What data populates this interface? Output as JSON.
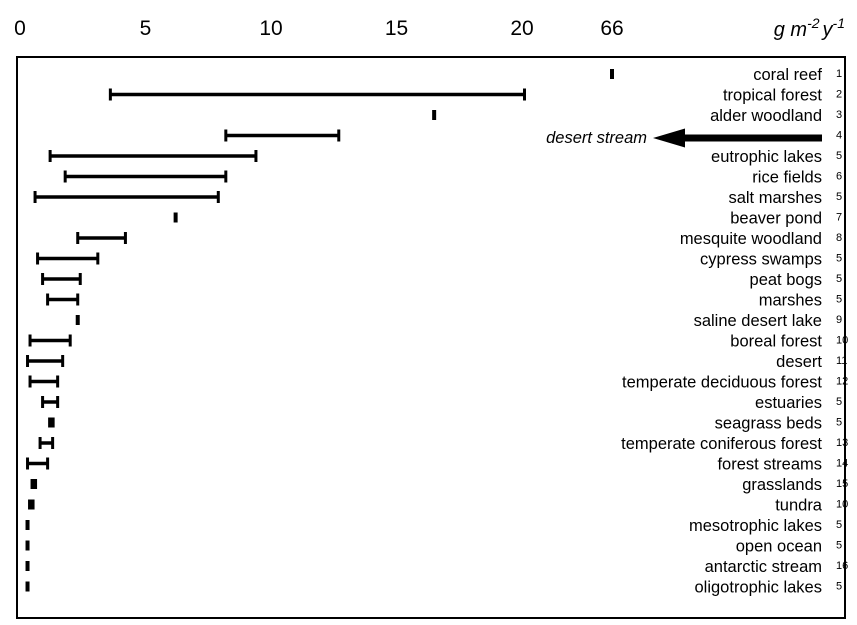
{
  "chart_data": {
    "type": "range-bar",
    "orientation": "horizontal",
    "unit_label": {
      "base": "g m",
      "exp1": "-2",
      "mid": "y",
      "exp2": "-1"
    },
    "x_ticks": [
      "0",
      "5",
      "10",
      "15",
      "20",
      "66"
    ],
    "x_scale": "linear 0-20, axis break to 66",
    "grid": false,
    "rows": [
      {
        "label": "coral reef",
        "ref": "1",
        "min": 66,
        "max": 66
      },
      {
        "label": "tropical forest",
        "ref": "2",
        "min": 3.6,
        "max": 20.1
      },
      {
        "label": "alder woodland",
        "ref": "3",
        "min": 16.5,
        "max": 16.5
      },
      {
        "label": "",
        "ref": "4",
        "min": 8.2,
        "max": 12.7
      },
      {
        "label": "eutrophic lakes",
        "ref": "5",
        "min": 1.2,
        "max": 9.4
      },
      {
        "label": "rice fields",
        "ref": "6",
        "min": 1.8,
        "max": 8.2
      },
      {
        "label": "salt marshes",
        "ref": "5",
        "min": 0.6,
        "max": 7.9
      },
      {
        "label": "beaver pond",
        "ref": "7",
        "min": 6.2,
        "max": 6.2
      },
      {
        "label": "mesquite woodland",
        "ref": "8",
        "min": 2.3,
        "max": 4.2
      },
      {
        "label": "cypress swamps",
        "ref": "5",
        "min": 0.7,
        "max": 3.1
      },
      {
        "label": "peat bogs",
        "ref": "5",
        "min": 0.9,
        "max": 2.4
      },
      {
        "label": "marshes",
        "ref": "5",
        "min": 1.1,
        "max": 2.3
      },
      {
        "label": "saline desert lake",
        "ref": "9",
        "min": 2.3,
        "max": 2.3
      },
      {
        "label": "boreal forest",
        "ref": "10",
        "min": 0.4,
        "max": 2.0
      },
      {
        "label": "desert",
        "ref": "11",
        "min": 0.3,
        "max": 1.7
      },
      {
        "label": "temperate deciduous forest",
        "ref": "12",
        "min": 0.4,
        "max": 1.5
      },
      {
        "label": "estuaries",
        "ref": "5",
        "min": 0.9,
        "max": 1.5
      },
      {
        "label": "seagrass beds",
        "ref": "5",
        "min": 1.2,
        "max": 1.3
      },
      {
        "label": "temperate coniferous forest",
        "ref": "13",
        "min": 0.8,
        "max": 1.3
      },
      {
        "label": "forest streams",
        "ref": "14",
        "min": 0.3,
        "max": 1.1
      },
      {
        "label": "grasslands",
        "ref": "15",
        "min": 0.5,
        "max": 0.6
      },
      {
        "label": "tundra",
        "ref": "10",
        "min": 0.4,
        "max": 0.5
      },
      {
        "label": "mesotrophic lakes",
        "ref": "5",
        "min": 0.3,
        "max": 0.3
      },
      {
        "label": "open ocean",
        "ref": "5",
        "min": 0.3,
        "max": 0.3
      },
      {
        "label": "antarctic stream",
        "ref": "16",
        "min": 0.3,
        "max": 0.3
      },
      {
        "label": "oligotrophic lakes",
        "ref": "5",
        "min": 0.3,
        "max": 0.3
      }
    ],
    "annotation": {
      "text": "desert stream",
      "row_ref": "4",
      "arrow": "pointing left to row 4"
    }
  }
}
